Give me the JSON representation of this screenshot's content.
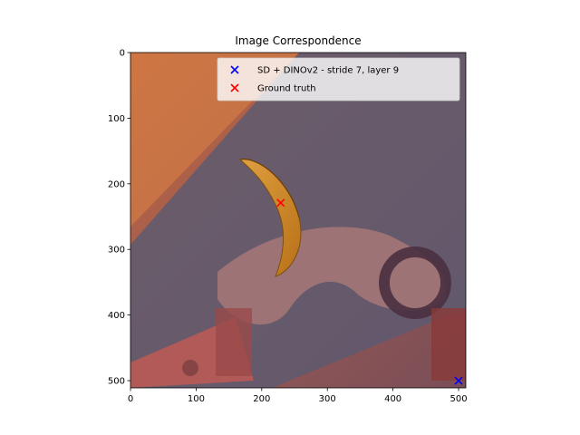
{
  "chart_data": {
    "type": "scatter",
    "title": "Image Correspondence",
    "xlabel": "",
    "ylabel": "",
    "xlim": [
      0,
      511
    ],
    "ylim": [
      511,
      0
    ],
    "y_inverted": true,
    "x_ticks": [
      0,
      100,
      200,
      300,
      400,
      500
    ],
    "y_ticks": [
      0,
      100,
      200,
      300,
      400,
      500
    ],
    "grid": false,
    "legend_position": "top-right",
    "series": [
      {
        "name": "SD + DINOv2 - stride 7, layer 9",
        "marker": "x",
        "color": "#0000ff",
        "points": [
          {
            "x": 500,
            "y": 500
          }
        ]
      },
      {
        "name": "Ground truth",
        "marker": "x",
        "color": "#ff0000",
        "points": [
          {
            "x": 229,
            "y": 229
          }
        ]
      }
    ],
    "background_image": {
      "description_icon": "photo-banana-heatmap-overlay",
      "accent_colors": [
        "#c75b3a",
        "#5e5a6e",
        "#d8a040",
        "#8a4a50"
      ]
    }
  }
}
